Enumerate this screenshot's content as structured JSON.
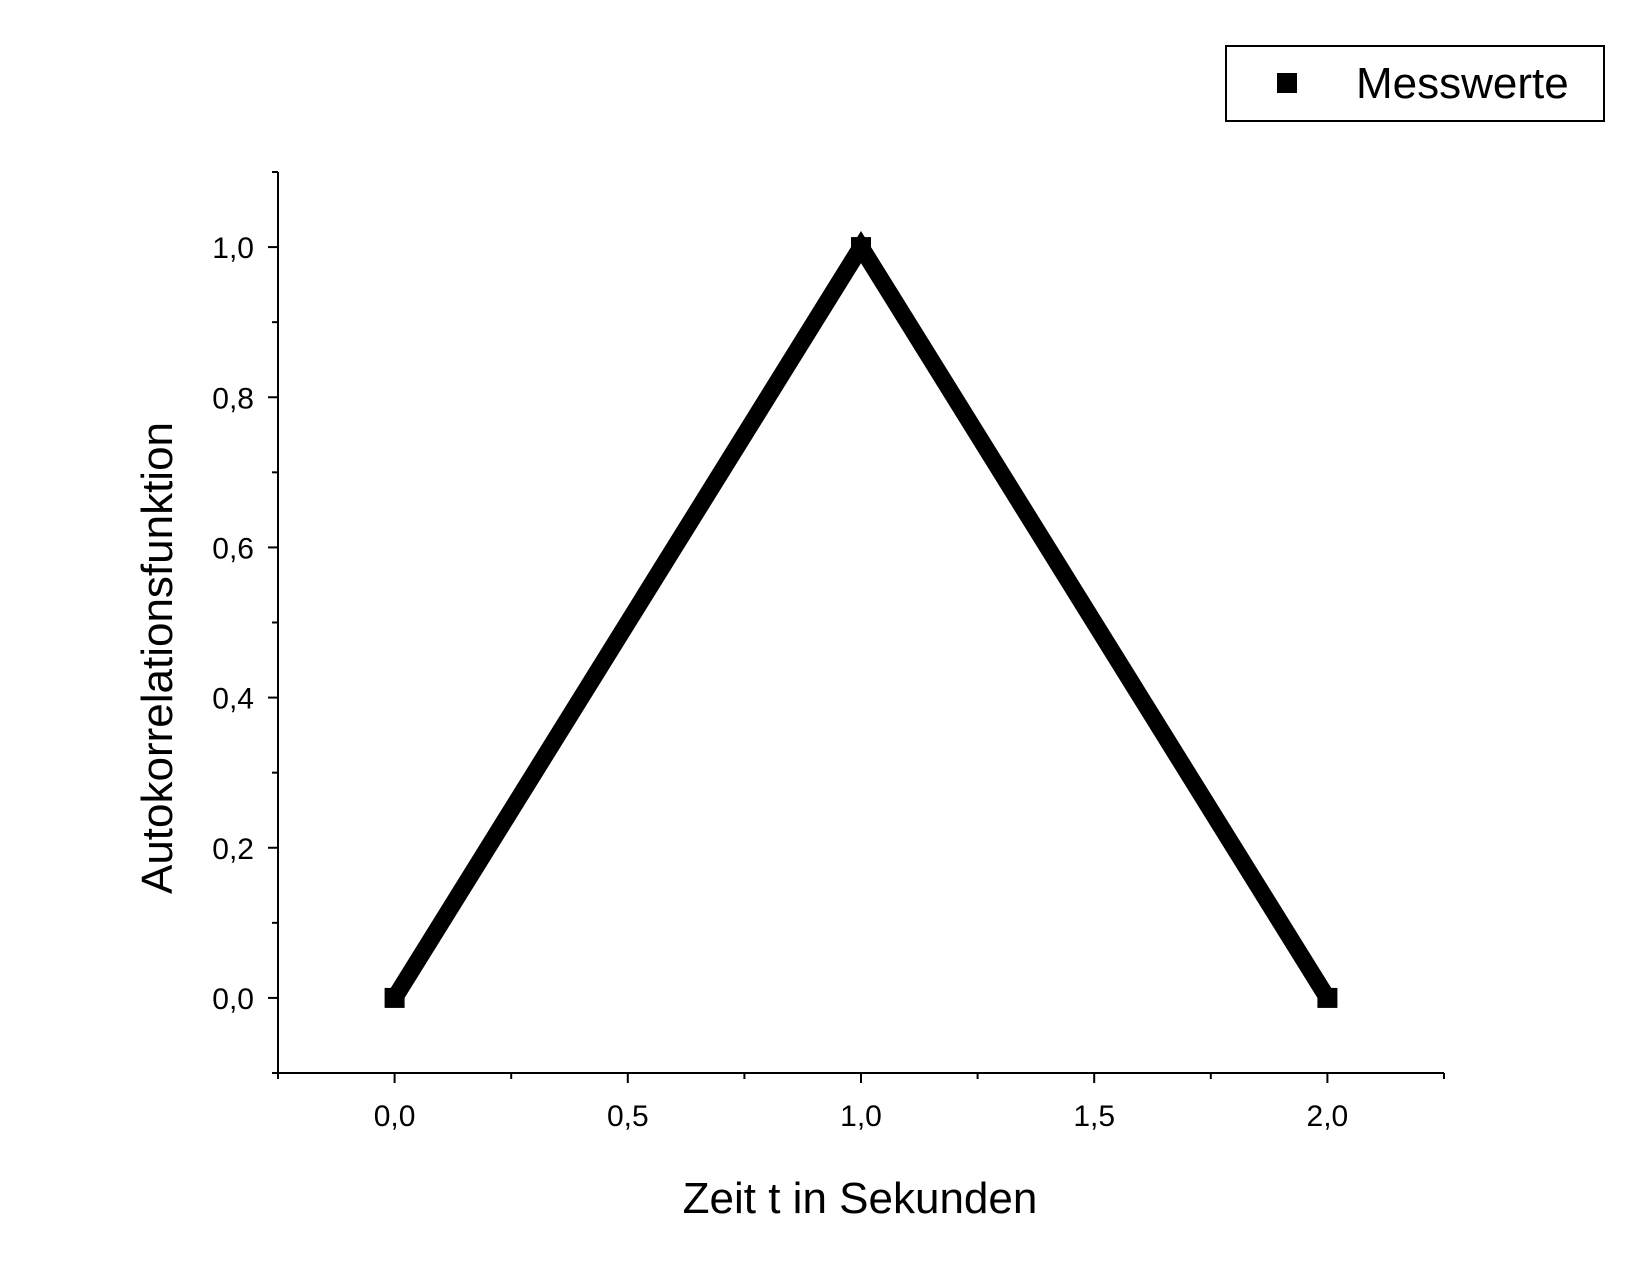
{
  "chart_data": {
    "type": "line",
    "title": "",
    "xlabel": "Zeit t in Sekunden",
    "ylabel": "Autokorrelationsfunktion",
    "xlim": [
      -0.25,
      2.25
    ],
    "ylim": [
      -0.1,
      1.1
    ],
    "xticks": [
      0.0,
      0.5,
      1.0,
      1.5,
      2.0
    ],
    "xtick_labels": [
      "0,0",
      "0,5",
      "1,0",
      "1,5",
      "2,0"
    ],
    "yticks": [
      0.0,
      0.2,
      0.4,
      0.6,
      0.8,
      1.0
    ],
    "ytick_labels": [
      "0,0",
      "0,2",
      "0,4",
      "0,6",
      "0,8",
      "1,0"
    ],
    "grid": false,
    "legend_position": "top-right",
    "series": [
      {
        "name": "Messwerte",
        "color": "#000000",
        "marker": "square",
        "x": [
          0.0,
          1.0,
          2.0
        ],
        "y": [
          0.0,
          1.0,
          0.0
        ]
      }
    ]
  }
}
